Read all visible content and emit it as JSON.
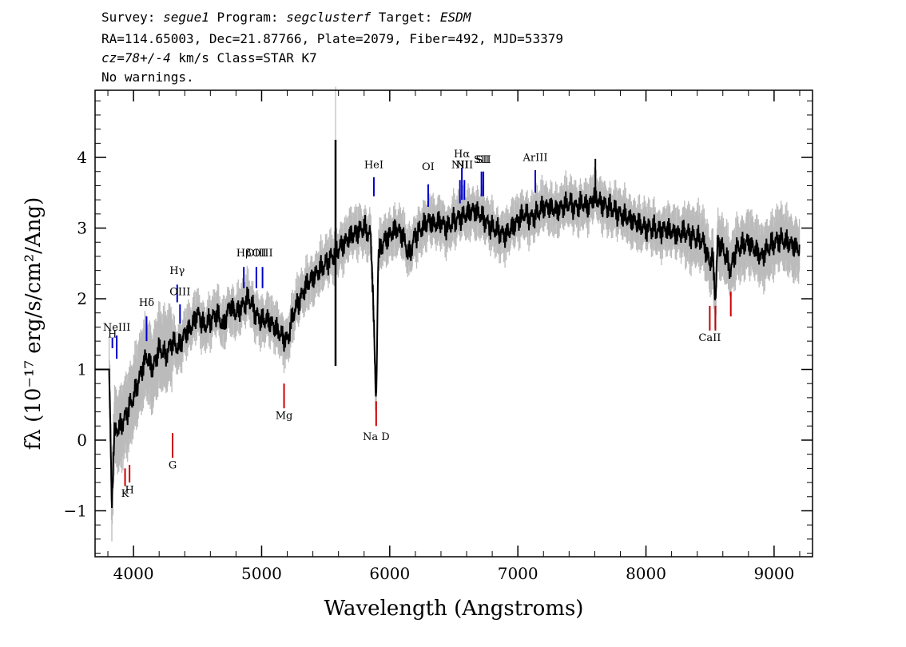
{
  "header": {
    "line1": {
      "survey_label": "Survey: ",
      "survey": "segue1",
      "program_label": " Program: ",
      "program": "segclusterf",
      "target_label": " Target: ",
      "target": "ESDM"
    },
    "line2": "RA=114.65003, Dec=21.87766, Plate=2079, Fiber=492, MJD=53379",
    "line3": {
      "cz": "cz=78+/-4",
      "rest": " km/s Class=STAR K7"
    },
    "line4": "No warnings."
  },
  "chart_data": {
    "type": "line",
    "xlabel": "Wavelength (Angstroms)",
    "ylabel": "fλ (10⁻¹⁷ erg/s/cm²/Ang)",
    "xlim": [
      3700,
      9300
    ],
    "ylim": [
      -1.65,
      4.95
    ],
    "x_ticks": [
      4000,
      5000,
      6000,
      7000,
      8000,
      9000
    ],
    "y_ticks": [
      -1,
      0,
      1,
      2,
      3,
      4
    ],
    "grid": false,
    "colors": {
      "flux": "#000000",
      "error": "#bbbbbb",
      "emission": "#0000cc",
      "absorption": "#cc0000"
    },
    "series": [
      {
        "role": "flux",
        "x": [
          3810,
          3830,
          3850,
          3900,
          3950,
          4000,
          4050,
          4100,
          4150,
          4200,
          4250,
          4300,
          4350,
          4400,
          4450,
          4500,
          4550,
          4600,
          4650,
          4700,
          4750,
          4800,
          4850,
          4900,
          4950,
          5000,
          5050,
          5100,
          5150,
          5200,
          5250,
          5300,
          5350,
          5400,
          5450,
          5500,
          5550,
          5600,
          5650,
          5700,
          5750,
          5800,
          5850,
          5870,
          5890,
          5896,
          5910,
          5950,
          6000,
          6050,
          6100,
          6150,
          6200,
          6250,
          6300,
          6350,
          6400,
          6450,
          6500,
          6550,
          6600,
          6650,
          6700,
          6750,
          6800,
          6850,
          6900,
          6950,
          7000,
          7050,
          7100,
          7150,
          7200,
          7250,
          7300,
          7350,
          7400,
          7450,
          7500,
          7550,
          7600,
          7650,
          7700,
          7750,
          7800,
          7850,
          7900,
          7950,
          8000,
          8050,
          8100,
          8150,
          8200,
          8250,
          8300,
          8350,
          8400,
          8450,
          8498,
          8520,
          8542,
          8560,
          8600,
          8662,
          8700,
          8750,
          8800,
          8850,
          8900,
          8950,
          9000,
          9050,
          9100,
          9150,
          9200
        ],
        "y": [
          1.0,
          -0.9,
          0.1,
          0.2,
          0.4,
          0.6,
          0.9,
          1.2,
          1.0,
          1.3,
          1.2,
          1.4,
          1.3,
          1.5,
          1.6,
          1.8,
          1.6,
          1.7,
          1.8,
          1.6,
          1.9,
          1.8,
          1.9,
          2.0,
          1.8,
          1.7,
          1.7,
          1.6,
          1.5,
          1.4,
          1.8,
          2.0,
          2.2,
          2.3,
          2.4,
          2.5,
          2.6,
          2.7,
          2.8,
          2.9,
          2.95,
          3.0,
          2.9,
          2.1,
          0.6,
          0.7,
          2.6,
          2.8,
          2.9,
          3.0,
          2.9,
          2.6,
          2.9,
          3.0,
          3.1,
          3.05,
          3.1,
          3.0,
          3.1,
          3.15,
          3.2,
          3.25,
          3.2,
          3.1,
          3.0,
          2.95,
          2.9,
          3.0,
          3.1,
          3.2,
          3.15,
          3.2,
          3.3,
          3.3,
          3.25,
          3.3,
          3.35,
          3.3,
          3.35,
          3.3,
          3.45,
          3.35,
          3.3,
          3.25,
          3.2,
          3.15,
          3.1,
          3.05,
          3.0,
          3.0,
          2.95,
          3.0,
          2.95,
          2.9,
          2.95,
          2.9,
          2.85,
          2.8,
          2.5,
          2.6,
          2.0,
          2.8,
          2.7,
          2.4,
          2.7,
          2.75,
          2.8,
          2.7,
          2.6,
          2.7,
          2.8,
          2.85,
          2.8,
          2.75,
          2.7
        ]
      }
    ],
    "sky_spike": {
      "x": 5577,
      "y": [
        1.05,
        4.25
      ]
    },
    "spike_7600": {
      "x": 7605,
      "y": [
        3.35,
        3.98
      ]
    },
    "emission_lines": [
      {
        "label": "H",
        "x": 3835,
        "y_text": 1.45,
        "y0": 1.3,
        "y1": 1.45
      },
      {
        "label": "NeIII",
        "x": 3869,
        "y_text": 1.55,
        "y0": 1.15,
        "y1": 1.48
      },
      {
        "label": "Hδ",
        "x": 4102,
        "y_text": 1.9,
        "y0": 1.4,
        "y1": 1.75
      },
      {
        "label": "Hγ",
        "x": 4341,
        "y_text": 2.35,
        "y0": 1.95,
        "y1": 2.2
      },
      {
        "label": "OIII",
        "x": 4363,
        "y_text": 2.05,
        "y0": 1.65,
        "y1": 1.92
      },
      {
        "label": "Hβ",
        "x": 4861,
        "y_text": 2.6,
        "y0": 2.15,
        "y1": 2.45
      },
      {
        "label": "OIII",
        "x": 4959,
        "y_text": 2.6,
        "y0": 2.15,
        "y1": 2.45
      },
      {
        "label": "OIII",
        "x": 5007,
        "y_text": 2.6,
        "y0": 2.15,
        "y1": 2.45
      },
      {
        "label": "HeI",
        "x": 5876,
        "y_text": 3.85,
        "y0": 3.45,
        "y1": 3.72
      },
      {
        "label": "OI",
        "x": 6300,
        "y_text": 3.82,
        "y0": 3.3,
        "y1": 3.62
      },
      {
        "label": "NII",
        "x": 6548,
        "y_text": 3.85,
        "y0": 3.35,
        "y1": 3.68
      },
      {
        "label": "Hα",
        "x": 6563,
        "y_text": 4.0,
        "y0": 3.4,
        "y1": 3.85
      },
      {
        "label": "NII",
        "x": 6583,
        "y_text": 3.85,
        "y0": 3.4,
        "y1": 3.68
      },
      {
        "label": "SII",
        "x": 6716,
        "y_text": 3.92,
        "y0": 3.45,
        "y1": 3.8
      },
      {
        "label": "SII",
        "x": 6731,
        "y_text": 3.92,
        "y0": 3.45,
        "y1": 3.8
      },
      {
        "label": "ArIII",
        "x": 7136,
        "y_text": 3.95,
        "y0": 3.5,
        "y1": 3.82
      }
    ],
    "absorption_lines": [
      {
        "label": "K",
        "x": 3934,
        "y_text": -0.8,
        "y0": -0.4,
        "y1": -0.65
      },
      {
        "label": "H",
        "x": 3969,
        "y_text": -0.75,
        "y0": -0.35,
        "y1": -0.6
      },
      {
        "label": "G",
        "x": 4305,
        "y_text": -0.4,
        "y0": 0.1,
        "y1": -0.25
      },
      {
        "label": "Mg",
        "x": 5175,
        "y_text": 0.3,
        "y0": 0.8,
        "y1": 0.45
      },
      {
        "label": "Na D",
        "x": 5894,
        "y_text": 0.0,
        "y0": 0.55,
        "y1": 0.2
      },
      {
        "label": "CaII",
        "x": 8498,
        "y_text": 1.4,
        "y0": 1.9,
        "y1": 1.55
      },
      {
        "label": "",
        "x": 8542,
        "y_text": 1.4,
        "y0": 1.9,
        "y1": 1.55
      },
      {
        "label": "",
        "x": 8662,
        "y_text": 1.4,
        "y0": 2.1,
        "y1": 1.75
      }
    ]
  }
}
